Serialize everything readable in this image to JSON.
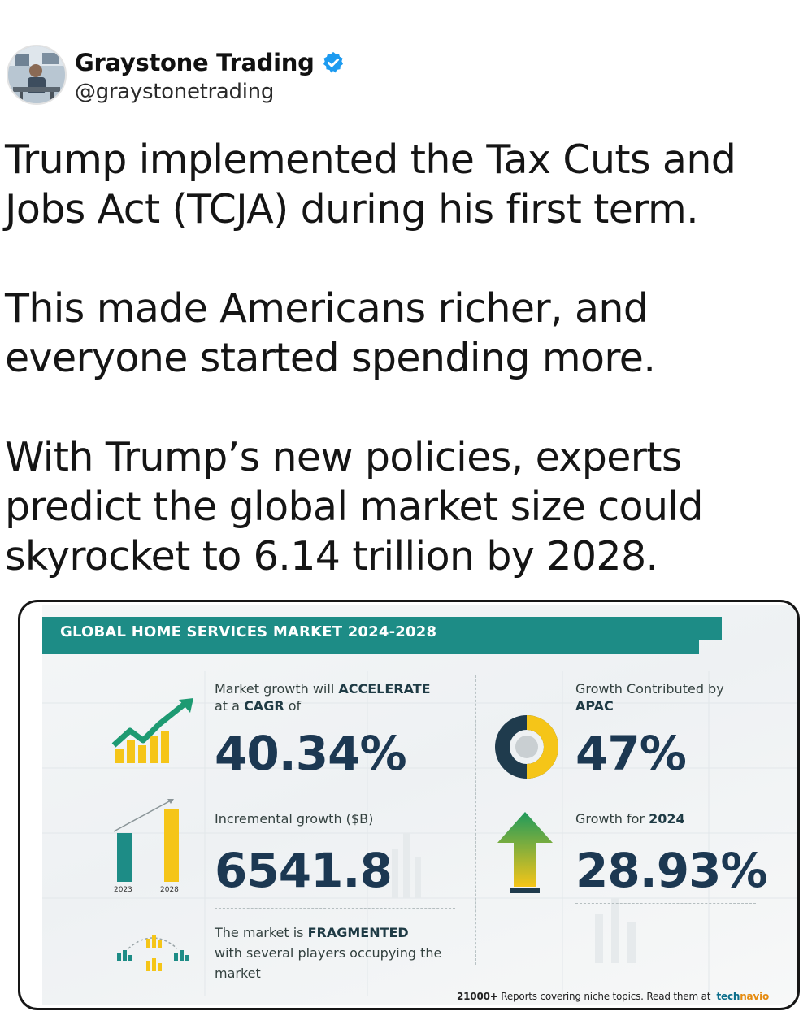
{
  "header": {
    "name": "Graystone Trading",
    "handle": "@graystonetrading"
  },
  "tweet": {
    "paragraphs": [
      "Trump implemented the Tax Cuts and\nJobs Act (TCJA) during his first term.",
      "This made Americans richer, and\neveryone started spending more.",
      "With Trump’s new policies, experts\npredict the global market size could\nskyrocket to 6.14 trillion by 2028."
    ]
  },
  "infographic": {
    "title": "GLOBAL HOME SERVICES MARKET 2024-2028",
    "cagr": {
      "label_pre": "Market growth will ",
      "label_bold": "ACCELERATE",
      "label_line2_pre": "at a ",
      "label_line2_bold": "CAGR",
      "label_line2_post": " of",
      "value": "40.34%"
    },
    "apac": {
      "label_line1": "Growth Contributed by",
      "label_line2": "APAC",
      "value": "47%"
    },
    "incremental": {
      "label": "Incremental growth ($B)",
      "value": "6541.8",
      "year_start": "2023",
      "year_end": "2028"
    },
    "growth_2024": {
      "label_pre": "Growth for ",
      "label_bold": "2024",
      "value": "28.93%"
    },
    "fragmented": {
      "line1_pre": "The market is ",
      "line1_bold": "FRAGMENTED",
      "line2": "with several players occupying the",
      "line3": "market"
    },
    "footer": {
      "count": "21000+",
      "text": " Reports covering niche topics. Read them at",
      "brand_a": "tech",
      "brand_b": "navio"
    },
    "colors": {
      "teal": "#1d8c86",
      "yellow": "#f5c518",
      "green": "#1f9a5c",
      "navy": "#1c3852"
    }
  }
}
